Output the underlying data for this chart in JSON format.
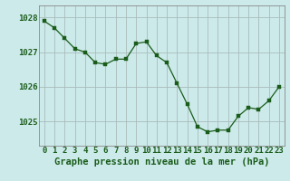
{
  "x": [
    0,
    1,
    2,
    3,
    4,
    5,
    6,
    7,
    8,
    9,
    10,
    11,
    12,
    13,
    14,
    15,
    16,
    17,
    18,
    19,
    20,
    21,
    22,
    23
  ],
  "y": [
    1027.9,
    1027.7,
    1027.4,
    1027.1,
    1027.0,
    1026.7,
    1026.65,
    1026.8,
    1026.8,
    1027.25,
    1027.3,
    1026.9,
    1026.7,
    1026.1,
    1025.5,
    1024.85,
    1024.7,
    1024.75,
    1024.75,
    1025.15,
    1025.4,
    1025.35,
    1025.6,
    1026.0
  ],
  "line_color": "#1a5c1a",
  "marker_color": "#1a5c1a",
  "bg_color": "#cceaea",
  "grid_color": "#aabbbb",
  "xlabel": "Graphe pression niveau de la mer (hPa)",
  "xlabel_color": "#1a5c1a",
  "ylabel_ticks": [
    1025,
    1026,
    1027,
    1028
  ],
  "xlim": [
    -0.5,
    23.5
  ],
  "ylim": [
    1024.3,
    1028.35
  ],
  "xtick_labels": [
    "0",
    "1",
    "2",
    "3",
    "4",
    "5",
    "6",
    "7",
    "8",
    "9",
    "10",
    "11",
    "12",
    "13",
    "14",
    "15",
    "16",
    "17",
    "18",
    "19",
    "20",
    "21",
    "22",
    "23"
  ],
  "tick_fontsize": 6.5,
  "label_fontsize": 7.5
}
